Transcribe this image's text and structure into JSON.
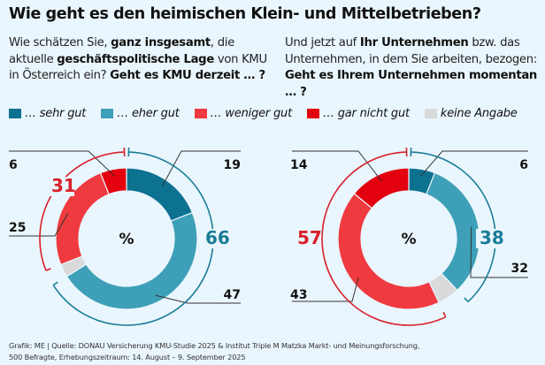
{
  "title": "Wie geht es den heimischen Klein- und Mittelbetrieben?",
  "questions": {
    "left": [
      {
        "t": "Wie schätzen Sie, ",
        "b": false
      },
      {
        "t": "ganz insgesamt",
        "b": true
      },
      {
        "t": ", die aktuelle ",
        "b": false
      },
      {
        "t": "geschäftspolitische Lage",
        "b": true
      },
      {
        "t": " von KMU in Österreich ein? ",
        "b": false
      },
      {
        "t": "Geht es KMU derzeit … ?",
        "b": true
      }
    ],
    "right": [
      {
        "t": "Und jetzt auf ",
        "b": false
      },
      {
        "t": "Ihr Unternehmen",
        "b": true
      },
      {
        "t": " bzw. das Unternehmen, in dem Sie arbeiten, bezogen: ",
        "b": false
      },
      {
        "t": "Geht es Ihrem Unternehmen momentan … ?",
        "b": true
      }
    ]
  },
  "legend": [
    {
      "label": "… sehr gut",
      "color": "#0d7190"
    },
    {
      "label": "… eher gut",
      "color": "#3e9fb8"
    },
    {
      "label": "… weniger gut",
      "color": "#ef3a3f"
    },
    {
      "label": "… gar nicht gut",
      "color": "#e3000f"
    },
    {
      "label": "keine Angabe",
      "color": "#d9dadc"
    }
  ],
  "colors": {
    "positive_total": "#1a7d98",
    "negative_total": "#d8202b",
    "background": "#eaf6fd"
  },
  "center_label": "%",
  "chart_data": [
    {
      "type": "pie",
      "variant": "donut",
      "title": "Geht es KMU derzeit … ?",
      "categories": [
        "… sehr gut",
        "… eher gut",
        "keine Angabe",
        "… weniger gut",
        "… gar nicht gut"
      ],
      "values": [
        19,
        47,
        3,
        25,
        6
      ],
      "labels": [
        "19",
        "47",
        "",
        "25",
        "6"
      ],
      "totals": {
        "positive": 66,
        "negative": 31
      },
      "unit": "%"
    },
    {
      "type": "pie",
      "variant": "donut",
      "title": "Geht es Ihrem Unternehmen momentan … ?",
      "categories": [
        "… sehr gut",
        "… eher gut",
        "keine Angabe",
        "… weniger gut",
        "… gar nicht gut"
      ],
      "values": [
        6,
        32,
        5,
        43,
        14
      ],
      "labels": [
        "6",
        "32",
        "",
        "43",
        "14"
      ],
      "totals": {
        "positive": 38,
        "negative": 57
      },
      "unit": "%"
    }
  ],
  "footer": {
    "line1": "Grafik: ME | Quelle: DONAU Versicherung KMU-Studie 2025 & Institut Triple M Matzka Markt- und Meinungsforschung,",
    "line2": "500 Befragte, Erhebungszeitraum: 14. August – 9. September 2025"
  }
}
